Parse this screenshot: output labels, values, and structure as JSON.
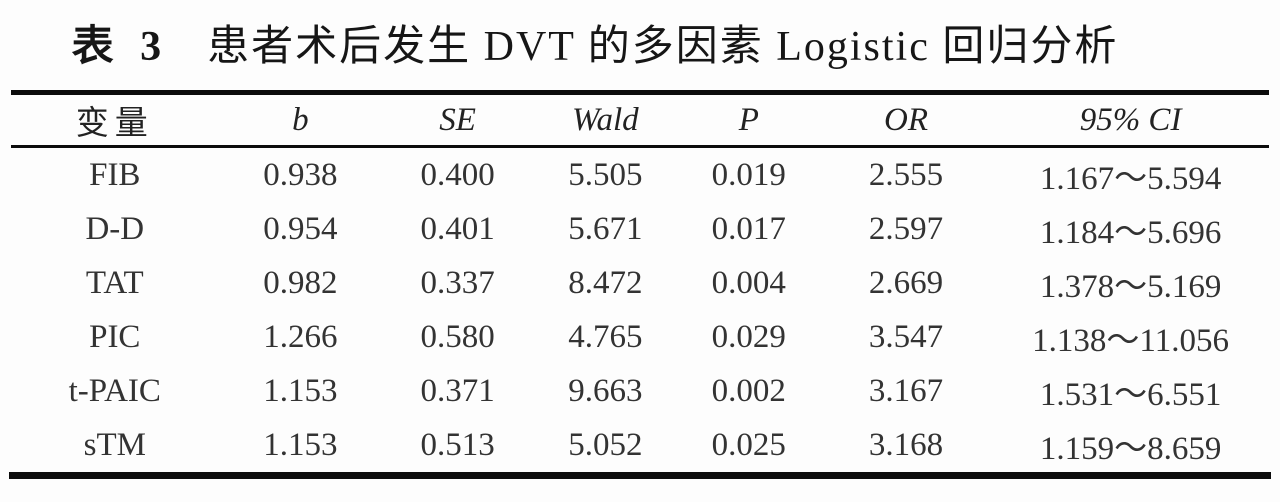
{
  "title": {
    "number": "表 3",
    "text": "患者术后发生 DVT 的多因素 Logistic 回归分析"
  },
  "table": {
    "columns": [
      "变量",
      "b",
      "SE",
      "Wald",
      "P",
      "OR",
      "95% CI"
    ],
    "rows": [
      [
        "FIB",
        "0.938",
        "0.400",
        "5.505",
        "0.019",
        "2.555",
        "1.167～5.594"
      ],
      [
        "D-D",
        "0.954",
        "0.401",
        "5.671",
        "0.017",
        "2.597",
        "1.184～5.696"
      ],
      [
        "TAT",
        "0.982",
        "0.337",
        "8.472",
        "0.004",
        "2.669",
        "1.378～5.169"
      ],
      [
        "PIC",
        "1.266",
        "0.580",
        "4.765",
        "0.029",
        "3.547",
        "1.138～11.056"
      ],
      [
        "t-PAIC",
        "1.153",
        "0.371",
        "9.663",
        "0.002",
        "3.167",
        "1.531～6.551"
      ],
      [
        "sTM",
        "1.153",
        "0.513",
        "5.052",
        "0.025",
        "3.168",
        "1.159～8.659"
      ]
    ]
  }
}
